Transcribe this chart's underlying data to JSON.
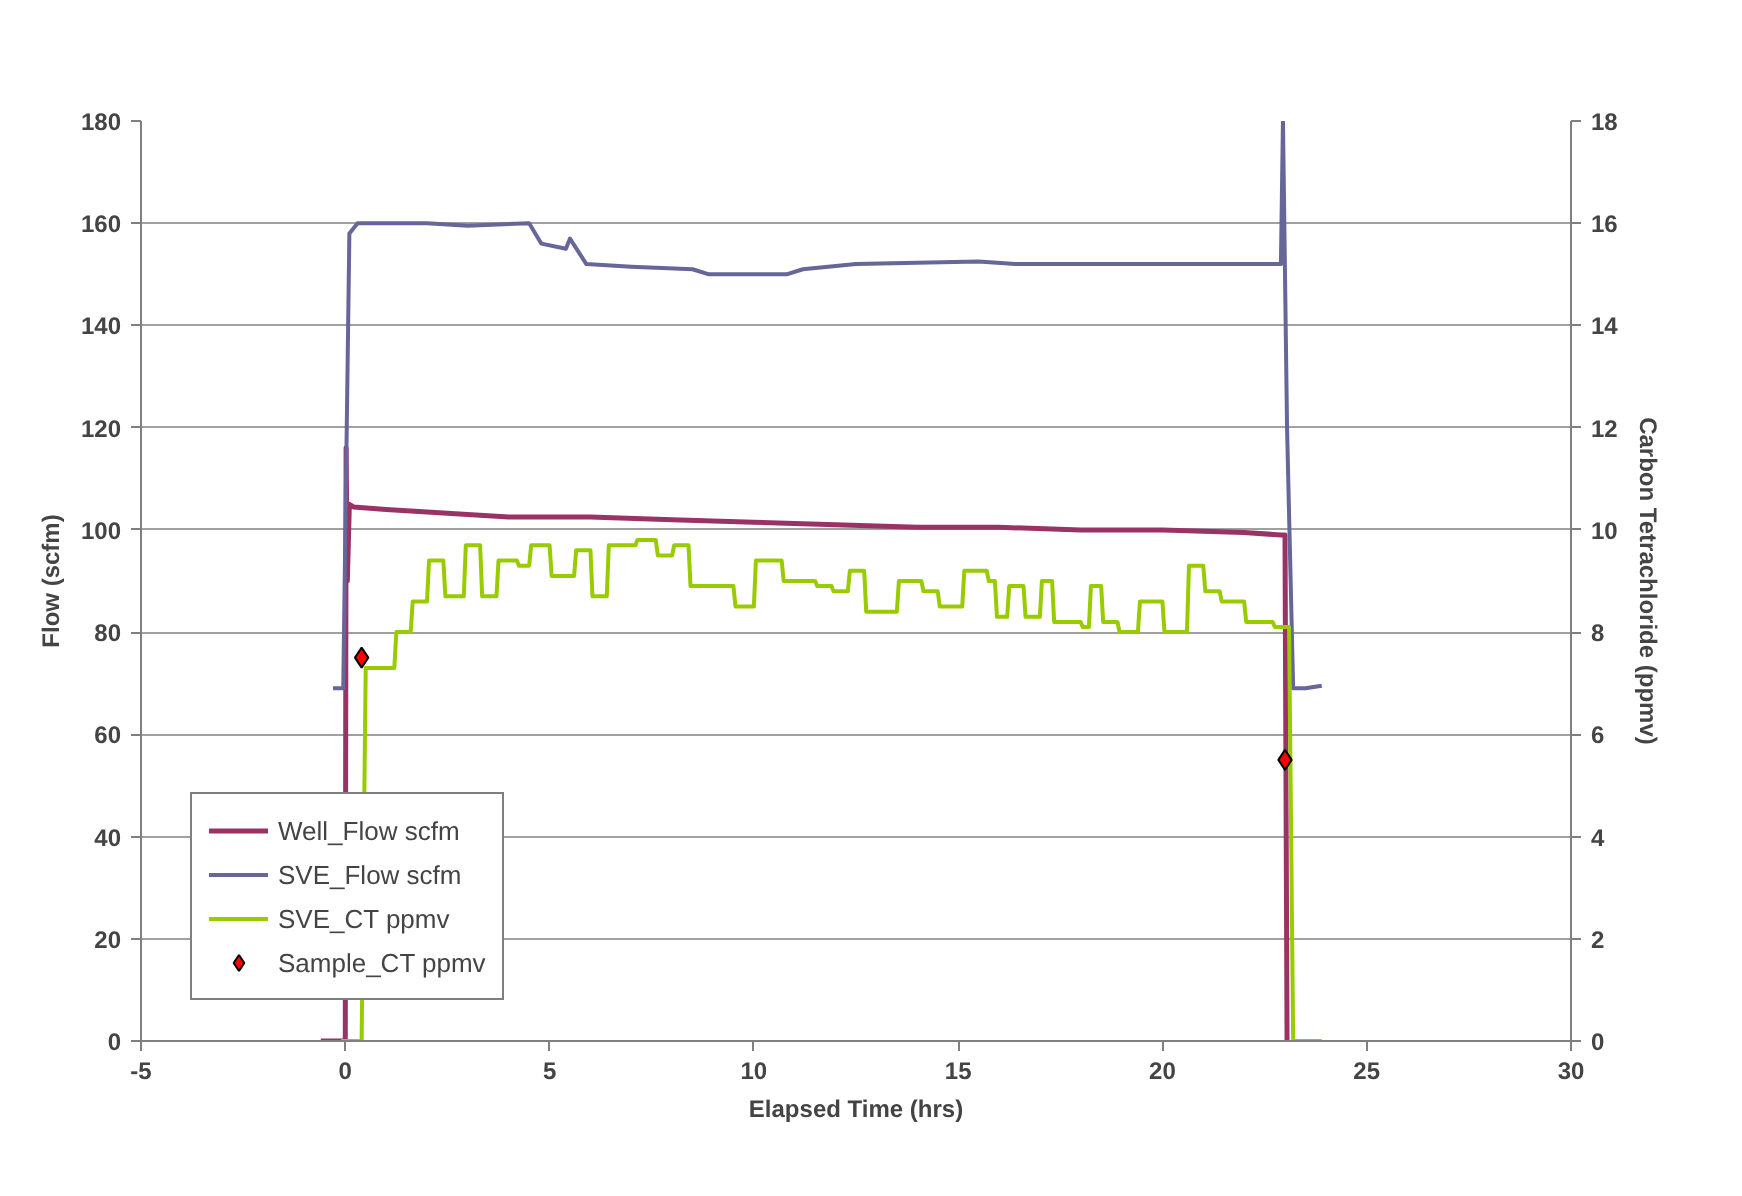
{
  "chart_data": {
    "type": "line",
    "xlabel": "Elapsed Time (hrs)",
    "ylabel": "Flow (scfm)",
    "y2label": "Carbon Tetrachloride (ppmv)",
    "xlim": [
      -5,
      30
    ],
    "xticks": [
      -5,
      0,
      5,
      10,
      15,
      20,
      25,
      30
    ],
    "ylim": [
      0,
      180
    ],
    "yticks": [
      0,
      20,
      40,
      60,
      80,
      100,
      120,
      140,
      160,
      180
    ],
    "y2lim": [
      0,
      18
    ],
    "y2ticks": [
      0,
      2,
      4,
      6,
      8,
      10,
      12,
      14,
      16,
      18
    ],
    "grid": "y",
    "legend": "bottom left",
    "series": [
      {
        "name": "Well_Flow scfm",
        "color": "#993366",
        "x": [
          -0.6,
          -0.05,
          0.0,
          0.02,
          0.05,
          0.1,
          0.2,
          1,
          2,
          3,
          4,
          5,
          6,
          8,
          10,
          12,
          14,
          16,
          18,
          20,
          22,
          22.9,
          23.0,
          23.05,
          23.1
        ],
        "values": [
          0,
          0,
          0,
          116,
          90,
          105,
          104.5,
          104,
          103.5,
          103,
          102.5,
          102.5,
          102.5,
          102,
          101.5,
          101,
          100.5,
          100.5,
          100,
          100,
          99.5,
          99,
          99,
          0,
          0
        ]
      },
      {
        "name": "SVE_Flow scfm",
        "color": "#666699",
        "x": [
          -0.3,
          -0.05,
          0.1,
          0.3,
          2,
          3,
          4.5,
          4.8,
          5.4,
          5.5,
          5.9,
          7,
          8.5,
          8.9,
          10.8,
          11.2,
          12.5,
          15.5,
          16.4,
          18,
          20,
          22.9,
          22.95,
          23.05,
          23.2,
          23.5,
          23.9
        ],
        "values": [
          69,
          69,
          158,
          160,
          160,
          159.5,
          160,
          156,
          155,
          157,
          152,
          151.5,
          151,
          150,
          150,
          151,
          152,
          152.5,
          152,
          152,
          152,
          152,
          180,
          120,
          69,
          69,
          69.5
        ]
      },
      {
        "name": "SVE_CT ppmv",
        "color": "#99cc00",
        "axis": "y2",
        "x": [
          -0.1,
          0.4,
          0.5,
          1.2,
          1.25,
          1.6,
          1.65,
          2.0,
          2.05,
          2.4,
          2.45,
          2.9,
          2.95,
          3.3,
          3.35,
          3.7,
          3.75,
          4.2,
          4.25,
          4.5,
          4.55,
          5.0,
          5.05,
          5.6,
          5.65,
          6.0,
          6.05,
          6.4,
          6.45,
          7.1,
          7.15,
          7.6,
          7.65,
          8.0,
          8.05,
          8.4,
          8.45,
          9.5,
          9.55,
          10.0,
          10.05,
          10.68,
          10.73,
          11.5,
          11.55,
          11.9,
          11.95,
          12.3,
          12.35,
          12.7,
          12.75,
          13.5,
          13.55,
          14.1,
          14.15,
          14.5,
          14.55,
          15.1,
          15.15,
          15.7,
          15.75,
          15.9,
          15.95,
          16.2,
          16.25,
          16.6,
          16.65,
          17.0,
          17.05,
          17.3,
          17.35,
          18.0,
          18.05,
          18.2,
          18.25,
          18.5,
          18.55,
          18.9,
          18.95,
          19.4,
          19.45,
          20.0,
          20.05,
          20.6,
          20.65,
          21.0,
          21.05,
          21.4,
          21.45,
          22.0,
          22.05,
          22.7,
          22.75,
          23.1,
          23.2,
          23.9
        ],
        "values": [
          0,
          0,
          7.3,
          7.3,
          8.0,
          8.0,
          8.6,
          8.6,
          9.4,
          9.4,
          8.7,
          8.7,
          9.7,
          9.7,
          8.7,
          8.7,
          9.4,
          9.4,
          9.3,
          9.3,
          9.7,
          9.7,
          9.1,
          9.1,
          9.6,
          9.6,
          8.7,
          8.7,
          9.7,
          9.7,
          9.8,
          9.8,
          9.5,
          9.5,
          9.7,
          9.7,
          8.9,
          8.9,
          8.5,
          8.5,
          9.4,
          9.4,
          9.0,
          9.0,
          8.9,
          8.9,
          8.8,
          8.8,
          9.2,
          9.2,
          8.4,
          8.4,
          9.0,
          9.0,
          8.8,
          8.8,
          8.5,
          8.5,
          9.2,
          9.2,
          9.0,
          9.0,
          8.3,
          8.3,
          8.9,
          8.9,
          8.3,
          8.3,
          9.0,
          9.0,
          8.2,
          8.2,
          8.1,
          8.1,
          8.9,
          8.9,
          8.2,
          8.2,
          8.0,
          8.0,
          8.6,
          8.6,
          8.0,
          8.0,
          9.3,
          9.3,
          8.8,
          8.8,
          8.6,
          8.6,
          8.2,
          8.2,
          8.1,
          8.1,
          0,
          0
        ]
      },
      {
        "name": "Sample_CT ppmv",
        "color": "#ff0000",
        "type": "scatter",
        "marker": "diamond",
        "axis": "y2",
        "x": [
          0.4,
          23.0
        ],
        "values": [
          7.5,
          5.5
        ]
      }
    ]
  }
}
